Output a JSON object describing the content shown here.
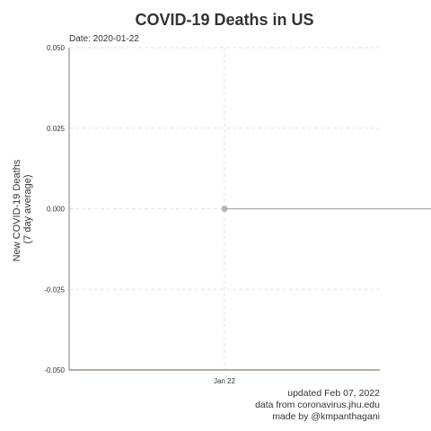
{
  "chart_data": {
    "type": "line",
    "title": "COVID-19 Deaths in US",
    "subtitle": "Date: 2020-01-22",
    "xlabel": "",
    "ylabel": "New COVID-19 Deaths",
    "ylabel_line2": "(7 day average)",
    "x": [
      "2020-01-22"
    ],
    "x_tick_labels": [
      "Jan 22"
    ],
    "y_ticks": [
      0.05,
      0.025,
      0,
      -0.025,
      -0.05
    ],
    "y_tick_labels": [
      "0.050",
      "0.025",
      "0.000",
      "-0.025",
      "-0.050"
    ],
    "ylim": [
      -0.05,
      0.05
    ],
    "series": [
      {
        "values": [
          0
        ]
      }
    ],
    "grid": true,
    "colors": {
      "point": "#b3b3b3",
      "line": "#a6a6a6",
      "axis": "#8c7b6b",
      "grid": "#e6e6e6"
    },
    "caption": [
      "updated Feb 07, 2022",
      "data from coronavirus.jhu.edu",
      "made by @kmpanthagani"
    ]
  }
}
